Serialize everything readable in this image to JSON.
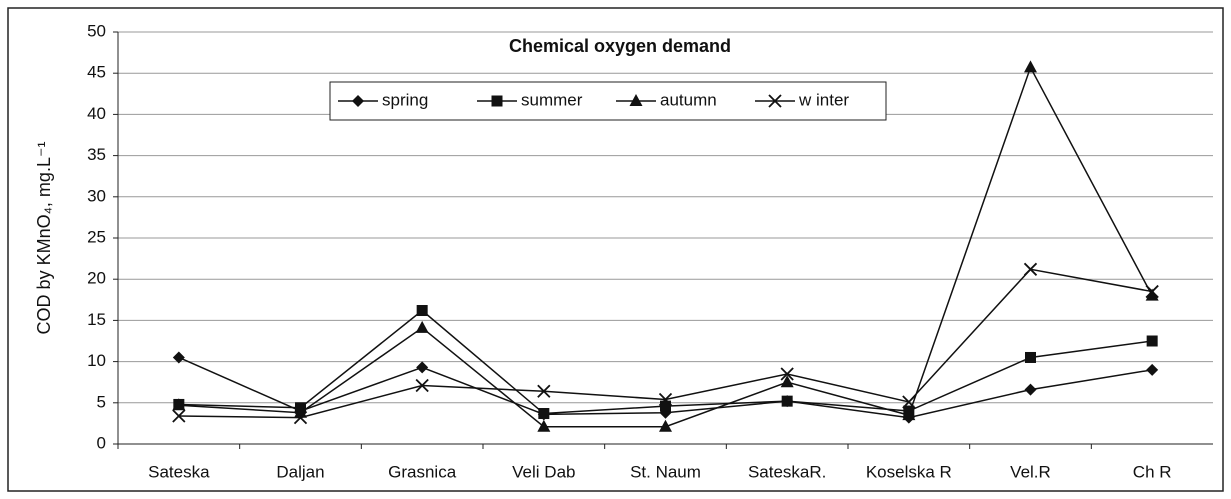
{
  "chart_data": {
    "type": "line",
    "title": "Chemical oxygen demand",
    "y_label": "COD by KMnO₄, mg.L⁻¹",
    "categories": [
      "Sateska",
      "Daljan",
      "Grasnica",
      "Veli Dab",
      "St. Naum",
      "SateskaR.",
      "Koselska R",
      "Vel.R",
      "Ch R"
    ],
    "series": [
      {
        "name": "spring",
        "color": "#111111",
        "marker": "diamond",
        "values": [
          10.5,
          4,
          9.3,
          3.6,
          3.8,
          5.2,
          3.2,
          6.6,
          9
        ]
      },
      {
        "name": "summer",
        "color": "#111111",
        "marker": "square",
        "values": [
          4.8,
          4.4,
          16.2,
          3.7,
          4.6,
          5.2,
          4,
          10.5,
          12.5
        ]
      },
      {
        "name": "autumn",
        "color": "#111111",
        "marker": "triangle",
        "values": [
          4.7,
          3.8,
          14.1,
          2.1,
          2.1,
          7.5,
          3.5,
          45.7,
          18
        ]
      },
      {
        "name": "w inter",
        "color": "#111111",
        "marker": "x",
        "values": [
          3.4,
          3.2,
          7.1,
          6.4,
          5.4,
          8.5,
          5.1,
          21.2,
          18.5
        ]
      }
    ],
    "ylim": [
      0,
      50
    ],
    "yticks": [
      0,
      5,
      10,
      15,
      20,
      25,
      30,
      35,
      40,
      45,
      50
    ],
    "grid": true
  }
}
